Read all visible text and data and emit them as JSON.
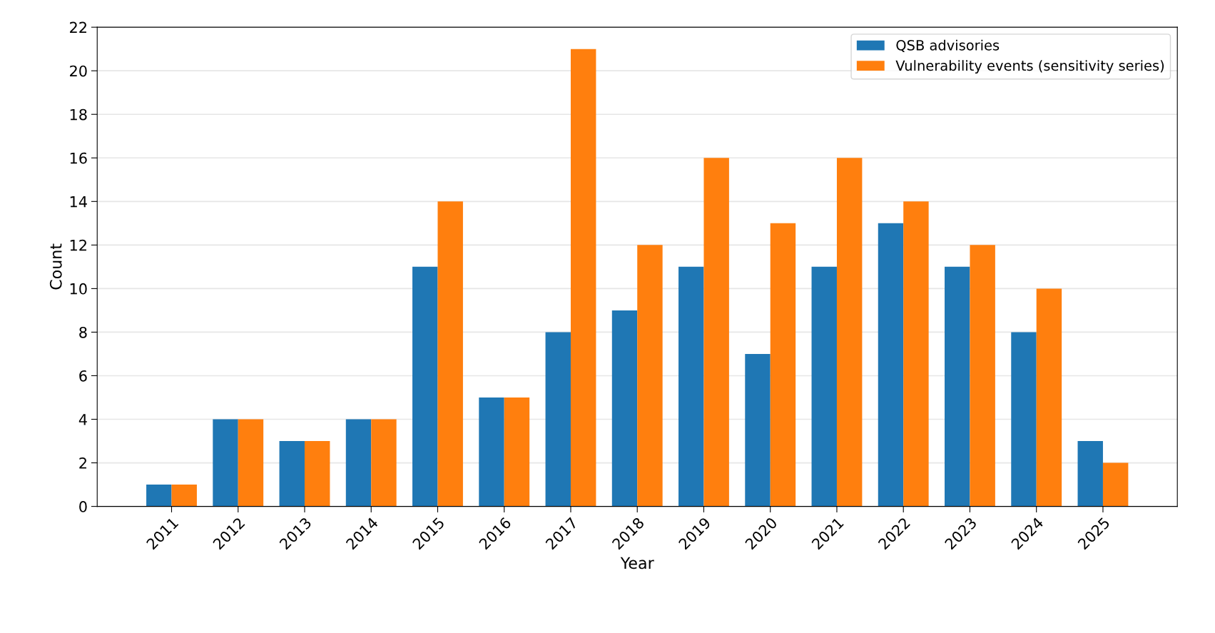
{
  "chart_data": {
    "type": "bar",
    "xlabel": "Year",
    "ylabel": "Count",
    "categories": [
      "2011",
      "2012",
      "2013",
      "2014",
      "2015",
      "2016",
      "2017",
      "2018",
      "2019",
      "2020",
      "2021",
      "2022",
      "2023",
      "2024",
      "2025"
    ],
    "series": [
      {
        "name": "QSB advisories",
        "color": "#1f77b4",
        "values": [
          1,
          4,
          3,
          4,
          11,
          5,
          8,
          9,
          11,
          7,
          11,
          13,
          11,
          8,
          3
        ]
      },
      {
        "name": "Vulnerability events (sensitivity series)",
        "color": "#ff7f0e",
        "values": [
          1,
          4,
          3,
          4,
          14,
          5,
          21,
          12,
          16,
          13,
          16,
          14,
          12,
          10,
          2
        ]
      }
    ],
    "ylim": [
      0,
      22
    ],
    "yticks": [
      0,
      2,
      4,
      6,
      8,
      10,
      12,
      14,
      16,
      18,
      20,
      22
    ],
    "grid": "y",
    "legend": "top right"
  }
}
